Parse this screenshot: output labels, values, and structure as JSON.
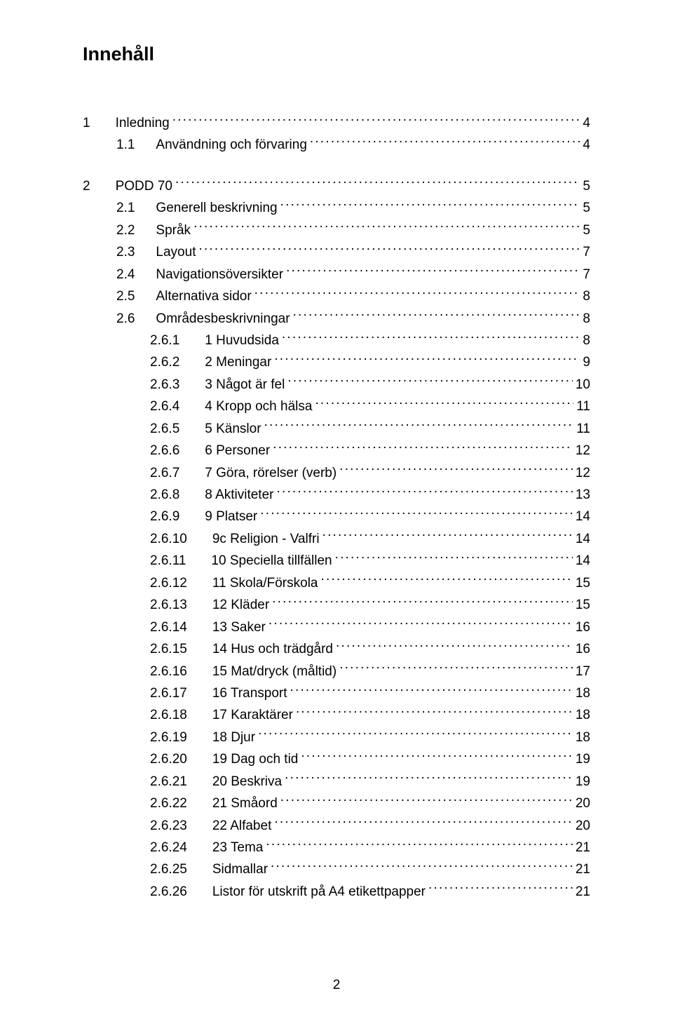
{
  "title": "Innehåll",
  "page_number": "2",
  "typography": {
    "body_fontsize_pt": 14,
    "title_fontsize_pt": 20,
    "font_family": "Arial"
  },
  "colors": {
    "text": "#000000",
    "background": "#ffffff"
  },
  "toc": [
    {
      "level": 1,
      "num": "1",
      "label": "Inledning",
      "page": "4",
      "gap_before": false
    },
    {
      "level": 2,
      "num": "1.1",
      "label": "Användning och förvaring",
      "page": "4",
      "gap_before": false
    },
    {
      "level": 1,
      "num": "2",
      "label": "PODD 70",
      "page": "5",
      "gap_before": true
    },
    {
      "level": 2,
      "num": "2.1",
      "label": "Generell beskrivning",
      "page": "5",
      "gap_before": false
    },
    {
      "level": 2,
      "num": "2.2",
      "label": "Språk",
      "page": "5",
      "gap_before": false
    },
    {
      "level": 2,
      "num": "2.3",
      "label": "Layout",
      "page": "7",
      "gap_before": false
    },
    {
      "level": 2,
      "num": "2.4",
      "label": "Navigationsöversikter",
      "page": "7",
      "gap_before": false
    },
    {
      "level": 2,
      "num": "2.5",
      "label": "Alternativa sidor",
      "page": "8",
      "gap_before": false
    },
    {
      "level": 2,
      "num": "2.6",
      "label": "Områdesbeskrivningar",
      "page": "8",
      "gap_before": false
    },
    {
      "level": 3,
      "num": "2.6.1",
      "label": "1 Huvudsida",
      "page": "8",
      "gap_before": false
    },
    {
      "level": 3,
      "num": "2.6.2",
      "label": "2 Meningar",
      "page": "9",
      "gap_before": false
    },
    {
      "level": 3,
      "num": "2.6.3",
      "label": "3 Något är fel",
      "page": "10",
      "gap_before": false
    },
    {
      "level": 3,
      "num": "2.6.4",
      "label": "4 Kropp och hälsa",
      "page": "11",
      "gap_before": false
    },
    {
      "level": 3,
      "num": "2.6.5",
      "label": "5 Känslor",
      "page": "11",
      "gap_before": false
    },
    {
      "level": 3,
      "num": "2.6.6",
      "label": "6 Personer",
      "page": "12",
      "gap_before": false
    },
    {
      "level": 3,
      "num": "2.6.7",
      "label": "7 Göra, rörelser (verb)",
      "page": "12",
      "gap_before": false
    },
    {
      "level": 3,
      "num": "2.6.8",
      "label": "8 Aktiviteter",
      "page": "13",
      "gap_before": false
    },
    {
      "level": 3,
      "num": "2.6.9",
      "label": "9 Platser",
      "page": "14",
      "gap_before": false
    },
    {
      "level": 3,
      "num": "2.6.10",
      "label": "9c Religion - Valfri",
      "page": "14",
      "gap_before": false
    },
    {
      "level": 3,
      "num": "2.6.11",
      "label": "10 Speciella tillfällen",
      "page": "14",
      "gap_before": false
    },
    {
      "level": 3,
      "num": "2.6.12",
      "label": "11 Skola/Förskola",
      "page": "15",
      "gap_before": false
    },
    {
      "level": 3,
      "num": "2.6.13",
      "label": "12 Kläder",
      "page": "15",
      "gap_before": false
    },
    {
      "level": 3,
      "num": "2.6.14",
      "label": "13 Saker",
      "page": "16",
      "gap_before": false
    },
    {
      "level": 3,
      "num": "2.6.15",
      "label": "14 Hus och trädgård",
      "page": "16",
      "gap_before": false
    },
    {
      "level": 3,
      "num": "2.6.16",
      "label": "15 Mat/dryck (måltid)",
      "page": "17",
      "gap_before": false
    },
    {
      "level": 3,
      "num": "2.6.17",
      "label": "16 Transport",
      "page": "18",
      "gap_before": false
    },
    {
      "level": 3,
      "num": "2.6.18",
      "label": "17 Karaktärer",
      "page": "18",
      "gap_before": false
    },
    {
      "level": 3,
      "num": "2.6.19",
      "label": "18 Djur",
      "page": "18",
      "gap_before": false
    },
    {
      "level": 3,
      "num": "2.6.20",
      "label": "19 Dag och tid",
      "page": "19",
      "gap_before": false
    },
    {
      "level": 3,
      "num": "2.6.21",
      "label": "20 Beskriva",
      "page": "19",
      "gap_before": false
    },
    {
      "level": 3,
      "num": "2.6.22",
      "label": "21 Småord",
      "page": "20",
      "gap_before": false
    },
    {
      "level": 3,
      "num": "2.6.23",
      "label": "22 Alfabet",
      "page": "20",
      "gap_before": false
    },
    {
      "level": 3,
      "num": "2.6.24",
      "label": "23 Tema",
      "page": "21",
      "gap_before": false
    },
    {
      "level": 3,
      "num": "2.6.25",
      "label": "Sidmallar",
      "page": "21",
      "gap_before": false
    },
    {
      "level": 3,
      "num": "2.6.26",
      "label": "Listor för utskrift på A4 etikettpapper",
      "page": "21",
      "gap_before": false
    }
  ]
}
